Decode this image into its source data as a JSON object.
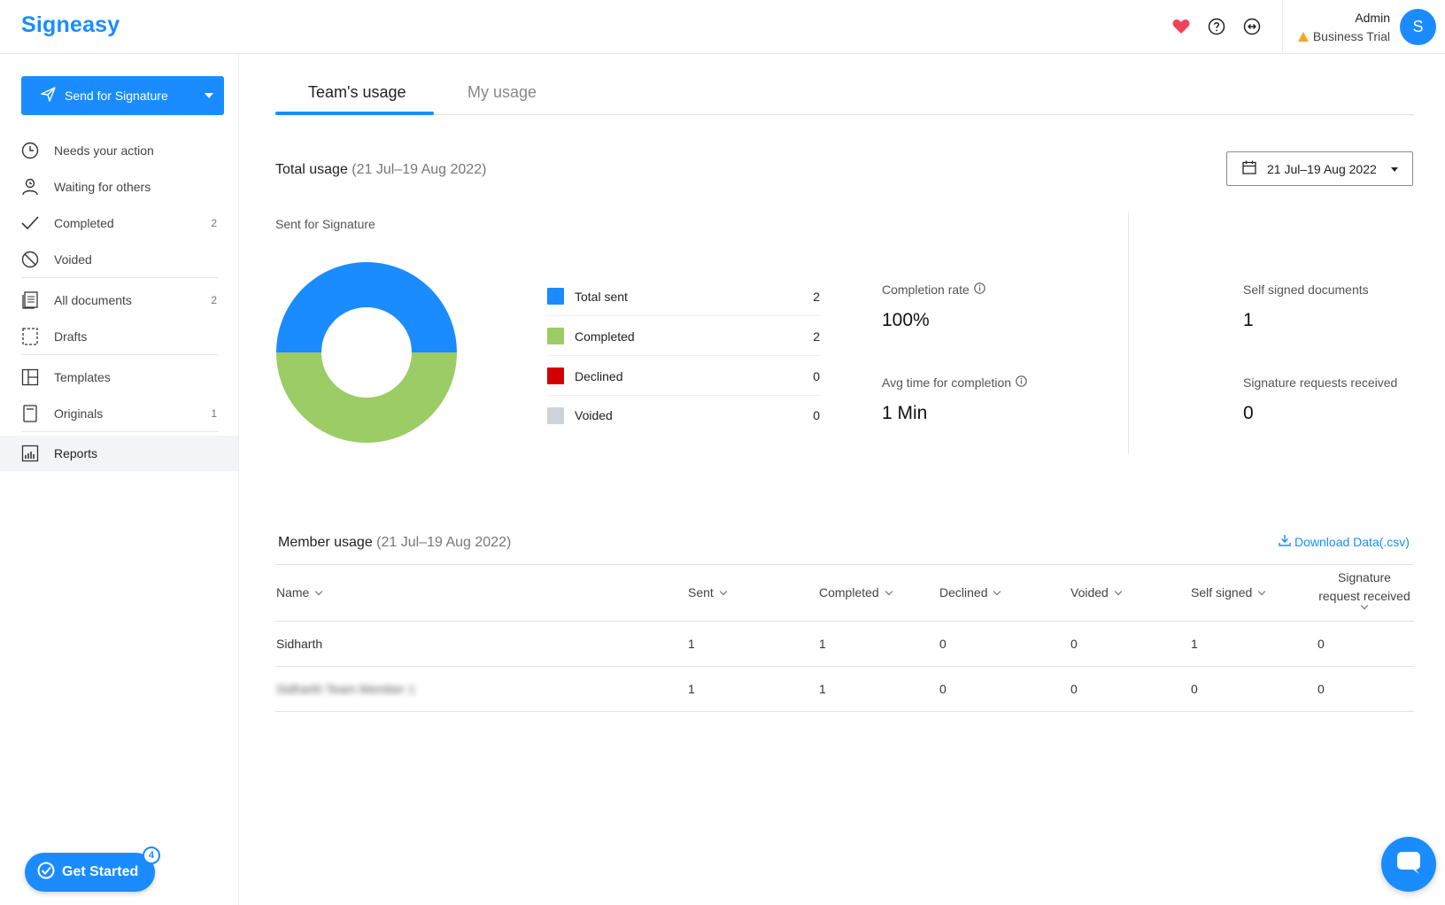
{
  "app": {
    "logo": "Signeasy"
  },
  "header": {
    "account_name": "Admin",
    "plan": "Business Trial",
    "avatar_initial": "S"
  },
  "sidebar": {
    "send_button": "Send for Signature",
    "items": [
      {
        "label": "Needs your action",
        "count": ""
      },
      {
        "label": "Waiting for others",
        "count": ""
      },
      {
        "label": "Completed",
        "count": "2"
      },
      {
        "label": "Voided",
        "count": ""
      },
      {
        "label": "All documents",
        "count": "2"
      },
      {
        "label": "Drafts",
        "count": ""
      },
      {
        "label": "Templates",
        "count": ""
      },
      {
        "label": "Originals",
        "count": "1"
      },
      {
        "label": "Reports",
        "count": ""
      }
    ],
    "get_started": "Get Started",
    "get_started_badge": "4"
  },
  "tabs": [
    {
      "label": "Team's usage"
    },
    {
      "label": "My usage"
    }
  ],
  "total_usage": {
    "title": "Total usage",
    "range": "(21 Jul–19 Aug 2022)",
    "date_picker": "21 Jul–19 Aug 2022",
    "chart_label": "Sent for Signature",
    "legend": [
      {
        "label": "Total sent",
        "value": "2",
        "color": "#1a8cff"
      },
      {
        "label": "Completed",
        "value": "2",
        "color": "#9ccc65"
      },
      {
        "label": "Declined",
        "value": "0",
        "color": "#d50000"
      },
      {
        "label": "Voided",
        "value": "0",
        "color": "#cfd2d6"
      }
    ],
    "completion_rate_label": "Completion rate",
    "completion_rate_value": "100%",
    "avg_time_label": "Avg time for completion",
    "avg_time_value": "1 Min",
    "self_signed_label": "Self signed documents",
    "self_signed_value": "1",
    "requests_received_label": "Signature requests received",
    "requests_received_value": "0"
  },
  "chart_data": {
    "type": "pie",
    "donut": true,
    "categories": [
      "Total sent",
      "Completed"
    ],
    "values": [
      2,
      2
    ],
    "colors": [
      "#1a8cff",
      "#9ccc65"
    ]
  },
  "member_usage": {
    "title": "Member usage",
    "range": "(21 Jul–19 Aug 2022)",
    "download": "Download Data(.csv)",
    "columns": [
      "Name",
      "Sent",
      "Completed",
      "Declined",
      "Voided",
      "Self signed",
      "Signature request received"
    ],
    "rows": [
      [
        "Sidharth",
        "1",
        "1",
        "0",
        "0",
        "1",
        "0"
      ],
      [
        "Sidharth Team Member 1",
        "1",
        "1",
        "0",
        "0",
        "0",
        "0"
      ]
    ]
  }
}
